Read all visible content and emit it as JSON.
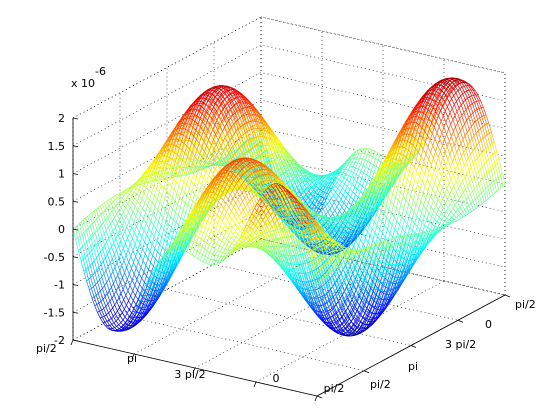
{
  "chart_data": {
    "type": "surface",
    "z_exponent_label": "x 10",
    "z_exponent_power": "-6",
    "z_ticks": [
      "-2",
      "-1.5",
      "-1",
      "-0.5",
      "0",
      "0.5",
      "1",
      "1.5",
      "2"
    ],
    "z_tick_values": [
      -2,
      -1.5,
      -1,
      -0.5,
      0,
      0.5,
      1,
      1.5,
      2
    ],
    "zlim": [
      -2,
      2
    ],
    "x_ticks": [
      "pi/2",
      "pi",
      "3 pi/2",
      "0",
      "pi/2"
    ],
    "y_ticks": [
      "pi/2",
      "pi",
      "3 pi/2",
      "0",
      "pi/2"
    ],
    "colormap": "jet",
    "grid": true
  }
}
